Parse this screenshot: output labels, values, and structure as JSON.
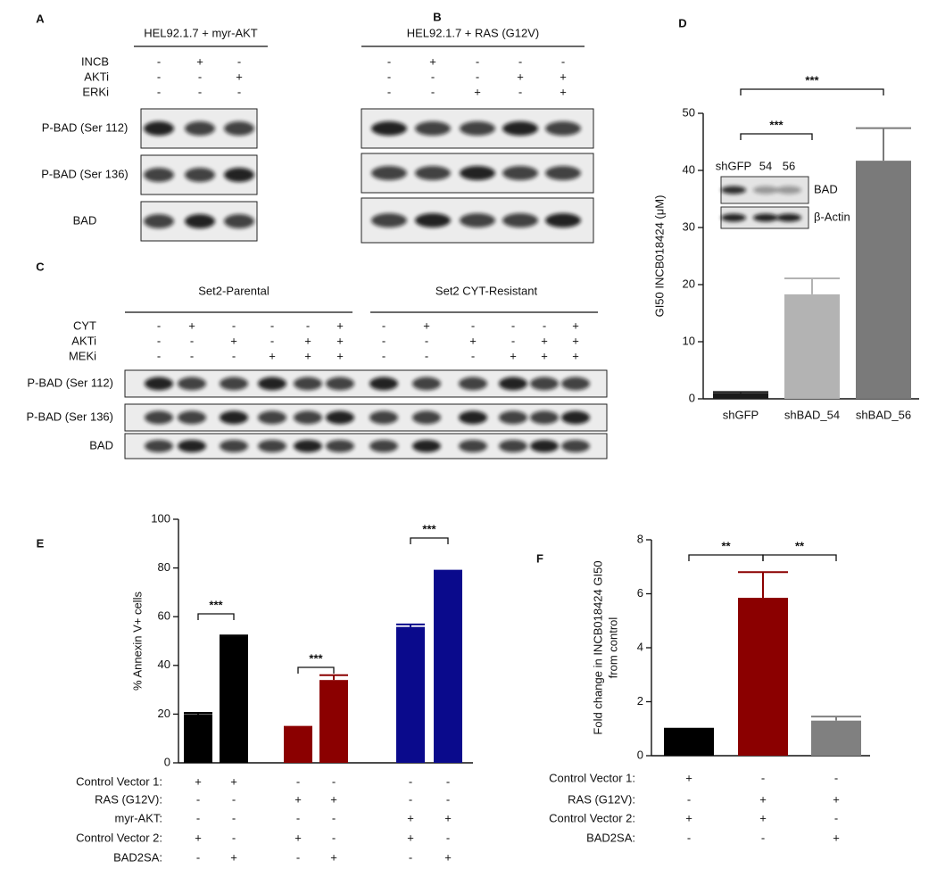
{
  "panel_labels": [
    "A",
    "B",
    "C",
    "D",
    "E",
    "F"
  ],
  "blots": [
    {
      "title": "HEL92.1.7 + myr-AKT",
      "treatments": [
        {
          "label": "INCB",
          "signs": [
            "-",
            "+",
            "-"
          ]
        },
        {
          "label": "AKTi",
          "signs": [
            "-",
            "-",
            "+"
          ]
        },
        {
          "label": "ERKi",
          "signs": [
            "-",
            "-",
            "-"
          ]
        }
      ],
      "rows": [
        {
          "label": "P-BAD (Ser 112)",
          "color": "#d42a2a"
        },
        {
          "label": "P-BAD (Ser 136)",
          "color": "#3a55d0"
        },
        {
          "label": "BAD",
          "color": "#111111"
        }
      ]
    },
    {
      "title": "HEL92.1.7 + RAS (G12V)",
      "treatments": [
        {
          "signs": [
            "-",
            "+",
            "-",
            "-",
            "-"
          ]
        },
        {
          "signs": [
            "-",
            "-",
            "-",
            "+",
            "+"
          ]
        },
        {
          "signs": [
            "-",
            "-",
            "+",
            "-",
            "+"
          ]
        }
      ]
    },
    {
      "groups": [
        "Set2-Parental",
        "Set2 CYT-Resistant"
      ],
      "treatments": [
        {
          "label": "CYT",
          "signs": [
            "-",
            "+",
            "-",
            "-",
            "-",
            "+",
            "-",
            "+",
            "-",
            "-",
            "-",
            "+"
          ]
        },
        {
          "label": "AKTi",
          "signs": [
            "-",
            "-",
            "+",
            "-",
            "+",
            "+",
            "-",
            "-",
            "+",
            "-",
            "+",
            "+"
          ]
        },
        {
          "label": "MEKi",
          "signs": [
            "-",
            "-",
            "-",
            "+",
            "+",
            "+",
            "-",
            "-",
            "-",
            "+",
            "+",
            "+"
          ]
        }
      ],
      "rows": [
        {
          "label": "P-BAD (Ser 112)",
          "color": "#d42a2a"
        },
        {
          "label": "P-BAD (Ser 136)",
          "color": "#3a55d0"
        },
        {
          "label": "BAD",
          "color": "#111111"
        }
      ]
    }
  ],
  "chart_data": [
    {
      "type": "bar",
      "ylabel": [
        "GI50 INCB018424 (μM)"
      ],
      "categories": [
        "shGFP",
        "shBAD_54",
        "shBAD_56"
      ],
      "values": [
        1,
        18.3,
        41.7
      ],
      "errors": [
        0.2,
        2.8,
        5.7
      ],
      "colors": [
        "#1a1a1a",
        "#b3b3b3",
        "#7a7a7a"
      ],
      "ylim": [
        0,
        50
      ],
      "yticks": [
        0,
        10,
        20,
        30,
        40,
        50
      ],
      "annotations": [
        "***",
        "***"
      ],
      "inset": {
        "lanes": [
          "shGFP",
          "54",
          "56"
        ],
        "rows": [
          "BAD",
          "β-Actin"
        ]
      }
    },
    {
      "type": "bar",
      "ylabel": [
        "% Annexin V+ cells"
      ],
      "categories": [
        null,
        null,
        null,
        null,
        null,
        null
      ],
      "values": [
        20,
        52,
        14.5,
        34,
        55.8,
        78.6
      ],
      "errors": [
        0.5,
        0.3,
        0.3,
        2,
        1,
        0.3
      ],
      "colors": [
        "#000000",
        "#000000",
        "#8b0000",
        "#8b0000",
        "#0a0a8c",
        "#0a0a8c"
      ],
      "ylim": [
        0,
        100
      ],
      "yticks": [
        0,
        20,
        40,
        60,
        80,
        100
      ],
      "annotations": [
        "***",
        "***",
        "***"
      ],
      "conditions": [
        {
          "label": "Control Vector 1:",
          "signs": [
            "+",
            "+",
            "-",
            "-",
            "-",
            "-"
          ]
        },
        {
          "label": "RAS (G12V):",
          "signs": [
            "-",
            "-",
            "+",
            "+",
            "-",
            "-"
          ]
        },
        {
          "label": "myr-AKT:",
          "signs": [
            "-",
            "-",
            "-",
            "-",
            "+",
            "+"
          ]
        },
        {
          "label": "Control Vector 2:",
          "signs": [
            "+",
            "-",
            "+",
            "-",
            "+",
            "-"
          ]
        },
        {
          "label": "BAD2SA:",
          "signs": [
            "-",
            "+",
            "-",
            "+",
            "-",
            "+"
          ]
        }
      ]
    },
    {
      "type": "bar",
      "ylabel": [
        "Fold change in INCB018424 GI50",
        "from control"
      ],
      "categories": [
        null,
        null,
        null
      ],
      "values": [
        1,
        5.85,
        1.3
      ],
      "errors": [
        0,
        0.95,
        0.15
      ],
      "colors": [
        "#000000",
        "#8b0000",
        "#808080"
      ],
      "ylim": [
        0,
        8
      ],
      "yticks": [
        0,
        2,
        4,
        6,
        8
      ],
      "annotations": [
        "**",
        "**"
      ],
      "conditions": [
        {
          "label": "Control Vector 1:",
          "signs": [
            "+",
            "-",
            "-"
          ]
        },
        {
          "label": "RAS (G12V):",
          "signs": [
            "-",
            "+",
            "+"
          ]
        },
        {
          "label": "Control Vector 2:",
          "signs": [
            "+",
            "+",
            "-"
          ]
        },
        {
          "label": "BAD2SA:",
          "signs": [
            "-",
            "-",
            "+"
          ]
        }
      ]
    }
  ]
}
